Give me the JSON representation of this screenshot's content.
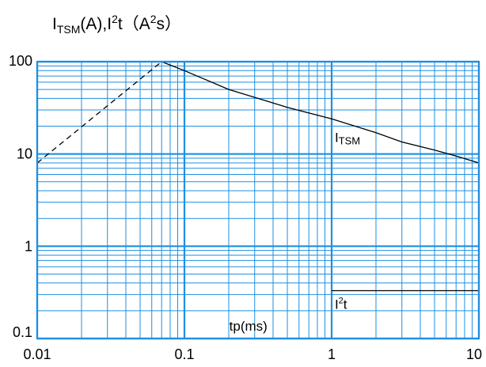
{
  "chart_data": {
    "type": "line",
    "title": "I_TSM(A),I²t（A²s）",
    "title_parts": {
      "i1": "I",
      "sub1": "TSM",
      "mid": "(A),I",
      "sup1": "2",
      "after": "t（A",
      "sup2": "2",
      "end": "s）"
    },
    "xlabel": "tp(ms)",
    "ylabel": "",
    "x_scale": "log",
    "y_scale": "log",
    "xlim": [
      0.01,
      10
    ],
    "ylim": [
      0.1,
      100
    ],
    "grid": true,
    "grid_color": "#1f8fe0",
    "line_color": "#000000",
    "x_ticks": [
      {
        "value": 0.01,
        "label": "0.01"
      },
      {
        "value": 0.1,
        "label": "0.1"
      },
      {
        "value": 1,
        "label": "1"
      },
      {
        "value": 10,
        "label": "10"
      }
    ],
    "y_ticks": [
      {
        "value": 0.1,
        "label": "0.1"
      },
      {
        "value": 1,
        "label": "1"
      },
      {
        "value": 10,
        "label": "10"
      },
      {
        "value": 100,
        "label": "100"
      }
    ],
    "series": [
      {
        "name": "I_TSM",
        "label_i": "I",
        "label_sub": "TSM",
        "style": "solid",
        "label_at": [
          1.05,
          13.5
        ],
        "x": [
          0.07,
          0.1,
          0.2,
          0.5,
          1,
          2,
          3,
          5,
          7,
          10
        ],
        "y": [
          100,
          80,
          50,
          32,
          24,
          17,
          13.5,
          11,
          9.5,
          8
        ]
      },
      {
        "name": "I_TSM-extension",
        "style": "dashed",
        "x": [
          0.01,
          0.07
        ],
        "y": [
          8,
          100
        ]
      },
      {
        "name": "I²t",
        "label_i": "I",
        "label_sup": "2",
        "label_t": "t",
        "style": "solid",
        "label_at": [
          1.05,
          0.21
        ],
        "x": [
          1,
          10
        ],
        "y": [
          0.33,
          0.33
        ]
      }
    ]
  }
}
